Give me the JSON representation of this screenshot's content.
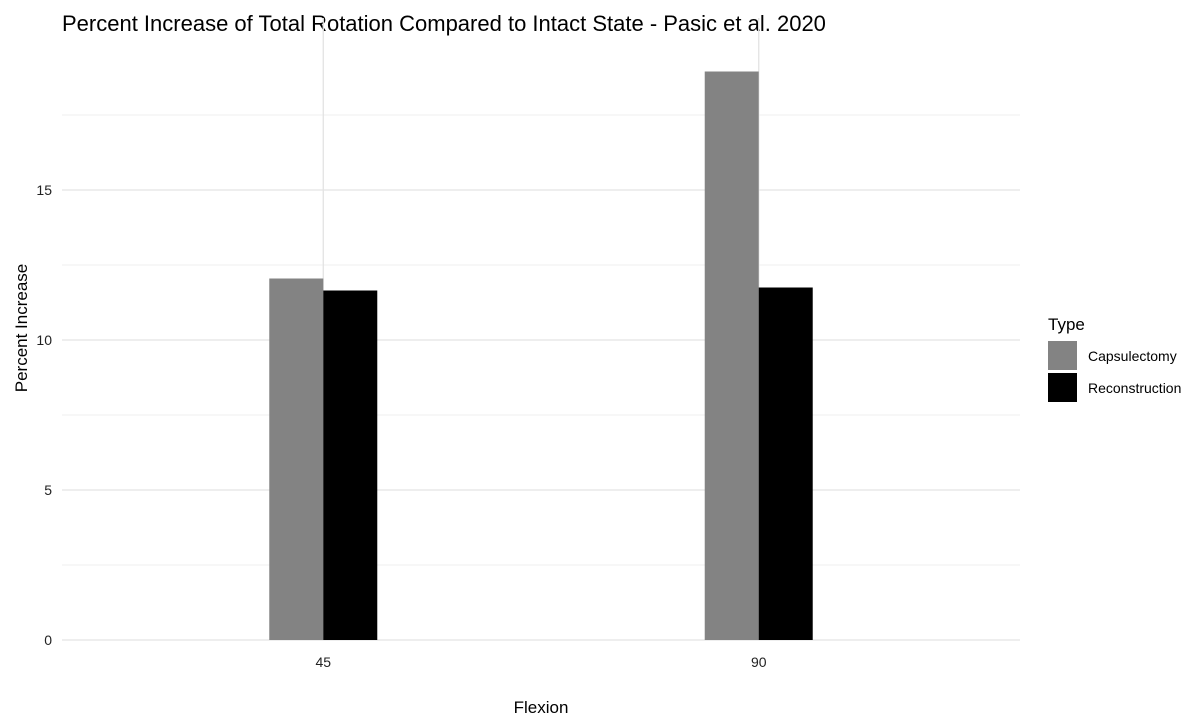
{
  "chart_data": {
    "type": "bar",
    "title": "Percent Increase of Total Rotation Compared to Intact State - Pasic et al. 2020",
    "xlabel": "Flexion",
    "ylabel": "Percent Increase",
    "categories": [
      "45",
      "90"
    ],
    "series": [
      {
        "name": "Capsulectomy",
        "values": [
          12.05,
          18.95
        ],
        "color": "#838383"
      },
      {
        "name": "Reconstruction",
        "values": [
          11.65,
          11.75
        ],
        "color": "#000000"
      }
    ],
    "ylim": [
      0,
      19.5
    ],
    "yticks": [
      0,
      5,
      10,
      15
    ],
    "grid": true,
    "legend": {
      "title": "Type",
      "position": "right"
    }
  }
}
